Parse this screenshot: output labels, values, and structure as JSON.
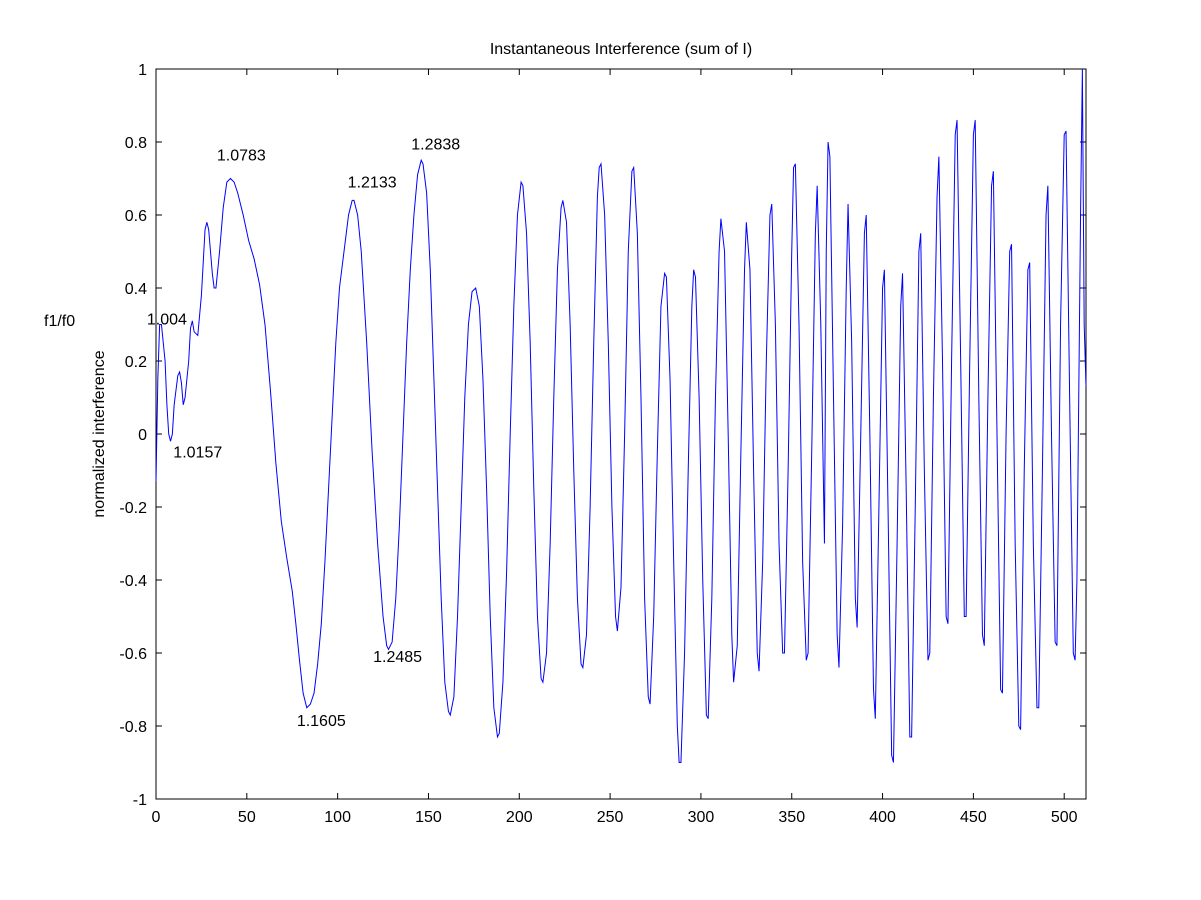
{
  "chart_data": {
    "type": "line",
    "title": "Instantaneous Interference (sum of I)",
    "xlabel": "",
    "ylabel": "normalized interference",
    "xlim": [
      0,
      512
    ],
    "ylim": [
      -1,
      1
    ],
    "xticks": [
      0,
      50,
      100,
      150,
      200,
      250,
      300,
      350,
      400,
      450,
      500
    ],
    "yticks": [
      -1,
      -0.8,
      -0.6,
      -0.4,
      -0.2,
      0,
      0.2,
      0.4,
      0.6,
      0.8,
      1
    ],
    "xtick_labels": [
      "0",
      "50",
      "100",
      "150",
      "200",
      "250",
      "300",
      "350",
      "400",
      "450",
      "500"
    ],
    "ytick_labels": [
      "-1",
      "-0.8",
      "-0.6",
      "-0.4",
      "-0.2",
      "0",
      "0.2",
      "0.4",
      "0.6",
      "0.8",
      "1"
    ],
    "grid": false,
    "line_color": "#0000ff",
    "side_label": "f1/f0",
    "series": [
      {
        "name": "",
        "points": [
          [
            0,
            -0.13
          ],
          [
            1,
            0.15
          ],
          [
            2,
            0.3
          ],
          [
            3,
            0.3
          ],
          [
            5,
            0.2
          ],
          [
            6,
            0.08
          ],
          [
            7,
            0.0
          ],
          [
            8,
            -0.02
          ],
          [
            9,
            0.0
          ],
          [
            10,
            0.08
          ],
          [
            12,
            0.16
          ],
          [
            13,
            0.17
          ],
          [
            14,
            0.14
          ],
          [
            15,
            0.08
          ],
          [
            16,
            0.1
          ],
          [
            18,
            0.2
          ],
          [
            19,
            0.29
          ],
          [
            20,
            0.31
          ],
          [
            21,
            0.28
          ],
          [
            23,
            0.27
          ],
          [
            25,
            0.38
          ],
          [
            27,
            0.56
          ],
          [
            28,
            0.58
          ],
          [
            29,
            0.56
          ],
          [
            31,
            0.44
          ],
          [
            32,
            0.4
          ],
          [
            33,
            0.4
          ],
          [
            35,
            0.5
          ],
          [
            37,
            0.62
          ],
          [
            39,
            0.69
          ],
          [
            41,
            0.7
          ],
          [
            43,
            0.69
          ],
          [
            45,
            0.66
          ],
          [
            48,
            0.6
          ],
          [
            51,
            0.53
          ],
          [
            54,
            0.48
          ],
          [
            57,
            0.41
          ],
          [
            60,
            0.3
          ],
          [
            63,
            0.12
          ],
          [
            66,
            -0.08
          ],
          [
            69,
            -0.24
          ],
          [
            72,
            -0.34
          ],
          [
            75,
            -0.43
          ],
          [
            77,
            -0.52
          ],
          [
            79,
            -0.62
          ],
          [
            81,
            -0.71
          ],
          [
            83,
            -0.75
          ],
          [
            85,
            -0.74
          ],
          [
            87,
            -0.71
          ],
          [
            89,
            -0.63
          ],
          [
            91,
            -0.52
          ],
          [
            93,
            -0.35
          ],
          [
            95,
            -0.15
          ],
          [
            97,
            0.05
          ],
          [
            99,
            0.25
          ],
          [
            101,
            0.4
          ],
          [
            104,
            0.52
          ],
          [
            106,
            0.6
          ],
          [
            108,
            0.64
          ],
          [
            109,
            0.64
          ],
          [
            111,
            0.6
          ],
          [
            113,
            0.5
          ],
          [
            116,
            0.25
          ],
          [
            119,
            -0.05
          ],
          [
            122,
            -0.3
          ],
          [
            125,
            -0.5
          ],
          [
            127,
            -0.58
          ],
          [
            128,
            -0.59
          ],
          [
            130,
            -0.57
          ],
          [
            132,
            -0.45
          ],
          [
            134,
            -0.25
          ],
          [
            136,
            0.0
          ],
          [
            138,
            0.25
          ],
          [
            140,
            0.45
          ],
          [
            142,
            0.6
          ],
          [
            144,
            0.71
          ],
          [
            146,
            0.75
          ],
          [
            147,
            0.74
          ],
          [
            149,
            0.66
          ],
          [
            151,
            0.45
          ],
          [
            153,
            0.15
          ],
          [
            155,
            -0.15
          ],
          [
            157,
            -0.45
          ],
          [
            159,
            -0.68
          ],
          [
            161,
            -0.76
          ],
          [
            162,
            -0.77
          ],
          [
            164,
            -0.72
          ],
          [
            166,
            -0.5
          ],
          [
            168,
            -0.2
          ],
          [
            170,
            0.1
          ],
          [
            172,
            0.3
          ],
          [
            174,
            0.39
          ],
          [
            176,
            0.4
          ],
          [
            178,
            0.35
          ],
          [
            180,
            0.15
          ],
          [
            182,
            -0.15
          ],
          [
            184,
            -0.5
          ],
          [
            186,
            -0.75
          ],
          [
            188,
            -0.83
          ],
          [
            189,
            -0.82
          ],
          [
            191,
            -0.68
          ],
          [
            193,
            -0.38
          ],
          [
            195,
            0.0
          ],
          [
            197,
            0.35
          ],
          [
            199,
            0.6
          ],
          [
            201,
            0.69
          ],
          [
            202,
            0.68
          ],
          [
            204,
            0.55
          ],
          [
            206,
            0.25
          ],
          [
            208,
            -0.15
          ],
          [
            210,
            -0.5
          ],
          [
            212,
            -0.67
          ],
          [
            213,
            -0.68
          ],
          [
            215,
            -0.6
          ],
          [
            217,
            -0.3
          ],
          [
            219,
            0.1
          ],
          [
            221,
            0.45
          ],
          [
            223,
            0.62
          ],
          [
            224,
            0.64
          ],
          [
            226,
            0.58
          ],
          [
            228,
            0.3
          ],
          [
            230,
            -0.1
          ],
          [
            232,
            -0.45
          ],
          [
            234,
            -0.63
          ],
          [
            235,
            -0.64
          ],
          [
            237,
            -0.55
          ],
          [
            239,
            -0.2
          ],
          [
            241,
            0.25
          ],
          [
            243,
            0.65
          ],
          [
            244,
            0.73
          ],
          [
            245,
            0.74
          ],
          [
            247,
            0.6
          ],
          [
            249,
            0.25
          ],
          [
            251,
            -0.2
          ],
          [
            253,
            -0.5
          ],
          [
            254,
            -0.54
          ],
          [
            256,
            -0.42
          ],
          [
            258,
            0.0
          ],
          [
            260,
            0.5
          ],
          [
            262,
            0.72
          ],
          [
            263,
            0.73
          ],
          [
            265,
            0.55
          ],
          [
            267,
            0.1
          ],
          [
            269,
            -0.45
          ],
          [
            271,
            -0.72
          ],
          [
            272,
            -0.74
          ],
          [
            274,
            -0.5
          ],
          [
            276,
            -0.05
          ],
          [
            278,
            0.35
          ],
          [
            280,
            0.44
          ],
          [
            281,
            0.43
          ],
          [
            283,
            0.15
          ],
          [
            285,
            -0.35
          ],
          [
            287,
            -0.8
          ],
          [
            288,
            -0.9
          ],
          [
            289,
            -0.9
          ],
          [
            291,
            -0.6
          ],
          [
            293,
            -0.1
          ],
          [
            295,
            0.35
          ],
          [
            296,
            0.45
          ],
          [
            297,
            0.43
          ],
          [
            299,
            0.1
          ],
          [
            301,
            -0.4
          ],
          [
            303,
            -0.77
          ],
          [
            304,
            -0.78
          ],
          [
            306,
            -0.45
          ],
          [
            308,
            0.1
          ],
          [
            310,
            0.5
          ],
          [
            311,
            0.59
          ],
          [
            313,
            0.5
          ],
          [
            315,
            0.0
          ],
          [
            317,
            -0.55
          ],
          [
            318,
            -0.68
          ],
          [
            320,
            -0.58
          ],
          [
            322,
            -0.05
          ],
          [
            324,
            0.45
          ],
          [
            325,
            0.58
          ],
          [
            327,
            0.45
          ],
          [
            329,
            -0.1
          ],
          [
            331,
            -0.6
          ],
          [
            332,
            -0.65
          ],
          [
            334,
            -0.35
          ],
          [
            336,
            0.2
          ],
          [
            338,
            0.6
          ],
          [
            339,
            0.63
          ],
          [
            341,
            0.3
          ],
          [
            343,
            -0.3
          ],
          [
            345,
            -0.6
          ],
          [
            346,
            -0.6
          ],
          [
            348,
            -0.1
          ],
          [
            350,
            0.5
          ],
          [
            351,
            0.73
          ],
          [
            352,
            0.74
          ],
          [
            354,
            0.3
          ],
          [
            356,
            -0.35
          ],
          [
            358,
            -0.62
          ],
          [
            359,
            -0.6
          ],
          [
            361,
            -0.05
          ],
          [
            363,
            0.55
          ],
          [
            364,
            0.68
          ],
          [
            366,
            0.3
          ],
          [
            368,
            -0.3
          ],
          [
            369,
            0.5
          ],
          [
            370,
            0.8
          ],
          [
            371,
            0.76
          ],
          [
            373,
            0.1
          ],
          [
            375,
            -0.55
          ],
          [
            376,
            -0.64
          ],
          [
            378,
            -0.25
          ],
          [
            380,
            0.4
          ],
          [
            381,
            0.63
          ],
          [
            383,
            0.25
          ],
          [
            385,
            -0.45
          ],
          [
            386,
            -0.53
          ],
          [
            388,
            0.0
          ],
          [
            390,
            0.55
          ],
          [
            391,
            0.6
          ],
          [
            393,
            0.0
          ],
          [
            395,
            -0.7
          ],
          [
            396,
            -0.78
          ],
          [
            398,
            -0.2
          ],
          [
            400,
            0.4
          ],
          [
            401,
            0.45
          ],
          [
            403,
            -0.2
          ],
          [
            405,
            -0.88
          ],
          [
            406,
            -0.9
          ],
          [
            408,
            -0.3
          ],
          [
            410,
            0.35
          ],
          [
            411,
            0.44
          ],
          [
            413,
            -0.15
          ],
          [
            415,
            -0.83
          ],
          [
            416,
            -0.83
          ],
          [
            418,
            -0.2
          ],
          [
            420,
            0.5
          ],
          [
            421,
            0.55
          ],
          [
            423,
            -0.1
          ],
          [
            425,
            -0.62
          ],
          [
            426,
            -0.6
          ],
          [
            428,
            0.1
          ],
          [
            430,
            0.65
          ],
          [
            431,
            0.76
          ],
          [
            433,
            0.2
          ],
          [
            435,
            -0.5
          ],
          [
            436,
            -0.52
          ],
          [
            438,
            0.2
          ],
          [
            440,
            0.82
          ],
          [
            441,
            0.86
          ],
          [
            443,
            0.2
          ],
          [
            445,
            -0.5
          ],
          [
            446,
            -0.5
          ],
          [
            448,
            0.2
          ],
          [
            450,
            0.82
          ],
          [
            451,
            0.86
          ],
          [
            453,
            0.1
          ],
          [
            455,
            -0.55
          ],
          [
            456,
            -0.58
          ],
          [
            458,
            0.1
          ],
          [
            460,
            0.68
          ],
          [
            461,
            0.72
          ],
          [
            463,
            0.0
          ],
          [
            465,
            -0.7
          ],
          [
            466,
            -0.71
          ],
          [
            468,
            0.0
          ],
          [
            470,
            0.5
          ],
          [
            471,
            0.52
          ],
          [
            473,
            -0.3
          ],
          [
            475,
            -0.8
          ],
          [
            476,
            -0.81
          ],
          [
            478,
            -0.1
          ],
          [
            480,
            0.45
          ],
          [
            481,
            0.47
          ],
          [
            483,
            -0.3
          ],
          [
            485,
            -0.75
          ],
          [
            486,
            -0.75
          ],
          [
            488,
            -0.1
          ],
          [
            490,
            0.6
          ],
          [
            491,
            0.68
          ],
          [
            493,
            0.0
          ],
          [
            495,
            -0.57
          ],
          [
            496,
            -0.58
          ],
          [
            498,
            0.3
          ],
          [
            500,
            0.82
          ],
          [
            501,
            0.83
          ],
          [
            503,
            0.1
          ],
          [
            505,
            -0.6
          ],
          [
            506,
            -0.62
          ],
          [
            507,
            -0.4
          ],
          [
            509,
            0.6
          ],
          [
            510,
            1.0
          ],
          [
            511,
            0.3
          ],
          [
            512,
            0.13
          ]
        ]
      }
    ],
    "annotations": [
      {
        "text": "1.004",
        "x": 6,
        "y": 0.3
      },
      {
        "text": "1.0157",
        "x": 23,
        "y": -0.065
      },
      {
        "text": "1.0783",
        "x": 47,
        "y": 0.75
      },
      {
        "text": "1.1605",
        "x": 91,
        "y": -0.8
      },
      {
        "text": "1.2133",
        "x": 119,
        "y": 0.675
      },
      {
        "text": "1.2485",
        "x": 133,
        "y": -0.625
      },
      {
        "text": "1.2838",
        "x": 154,
        "y": 0.78
      }
    ]
  }
}
